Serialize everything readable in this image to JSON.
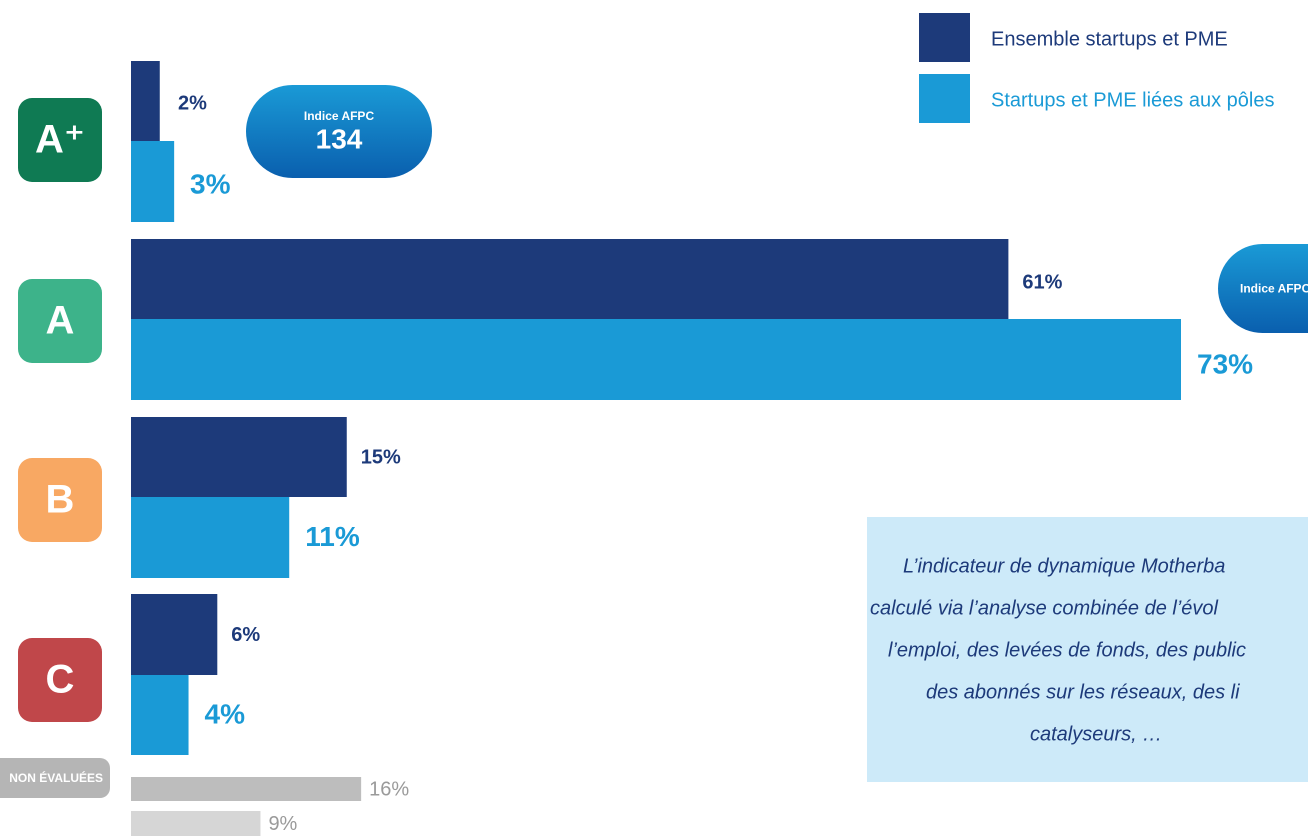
{
  "chart_data": {
    "type": "hbar",
    "categories": [
      "A⁺",
      "A",
      "B",
      "C",
      "NON ÉVALUÉES"
    ],
    "badge_colors": [
      "#0f7a53",
      "#3db38a",
      "#f8a863",
      "#c0474a",
      "#b5b5b5"
    ],
    "series": [
      {
        "name": "Ensemble startups et PME",
        "color": "#1d3a7a",
        "colors": [
          "#1d3a7a",
          "#1d3a7a",
          "#1d3a7a",
          "#1d3a7a",
          "#bdbdbd"
        ],
        "values": [
          2,
          61,
          15,
          6,
          16
        ],
        "value_labels": [
          "2%",
          "61%",
          "15%",
          "6%",
          "16%"
        ]
      },
      {
        "name": "Startups et PME liées aux pôles",
        "color": "#1a9ad6",
        "colors": [
          "#1a9ad6",
          "#1a9ad6",
          "#1a9ad6",
          "#1a9ad6",
          "#d6d6d6"
        ],
        "values": [
          3,
          73,
          11,
          4,
          9
        ],
        "value_labels": [
          "3%",
          "73%",
          "11%",
          "4%",
          "9%"
        ]
      }
    ],
    "annotations": [
      {
        "label": "Indice AFPC",
        "value": 134
      },
      {
        "label": "Indice AFPC"
      }
    ],
    "callout": [
      "L’indicateur de dynamique Motherba",
      "calculé via l’analyse combinée de l’évol",
      "l’emploi, des levées de fonds, des public",
      "des abonnés sur les réseaux, des li",
      "catalyseurs, …"
    ]
  }
}
